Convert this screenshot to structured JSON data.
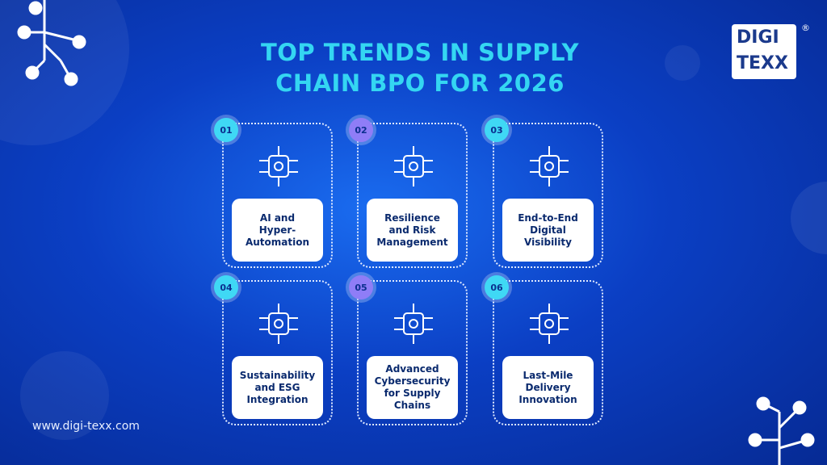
{
  "title": {
    "lines": [
      "TOP TRENDS IN SUPPLY",
      "CHAIN BPO FOR 2026"
    ]
  },
  "logo": {
    "top": "DIGI",
    "bottom": "TEXX",
    "mark": "®"
  },
  "website": "www.digi-texx.com",
  "cards": [
    {
      "number": "01",
      "lines": [
        "AI and",
        "Hyper-",
        "Automation"
      ]
    },
    {
      "number": "02",
      "lines": [
        "Resilience",
        "and Risk",
        "Management"
      ]
    },
    {
      "number": "03",
      "lines": [
        "End-to-End",
        "Digital",
        "Visibility"
      ]
    },
    {
      "number": "04",
      "lines": [
        "Sustainability",
        "and ESG",
        "Integration"
      ]
    },
    {
      "number": "05",
      "lines": [
        "Advanced",
        "Cybersecurity",
        "for Supply",
        "Chains"
      ]
    },
    {
      "number": "06",
      "lines": [
        "Last-Mile",
        "Delivery",
        "Innovation"
      ]
    }
  ]
}
